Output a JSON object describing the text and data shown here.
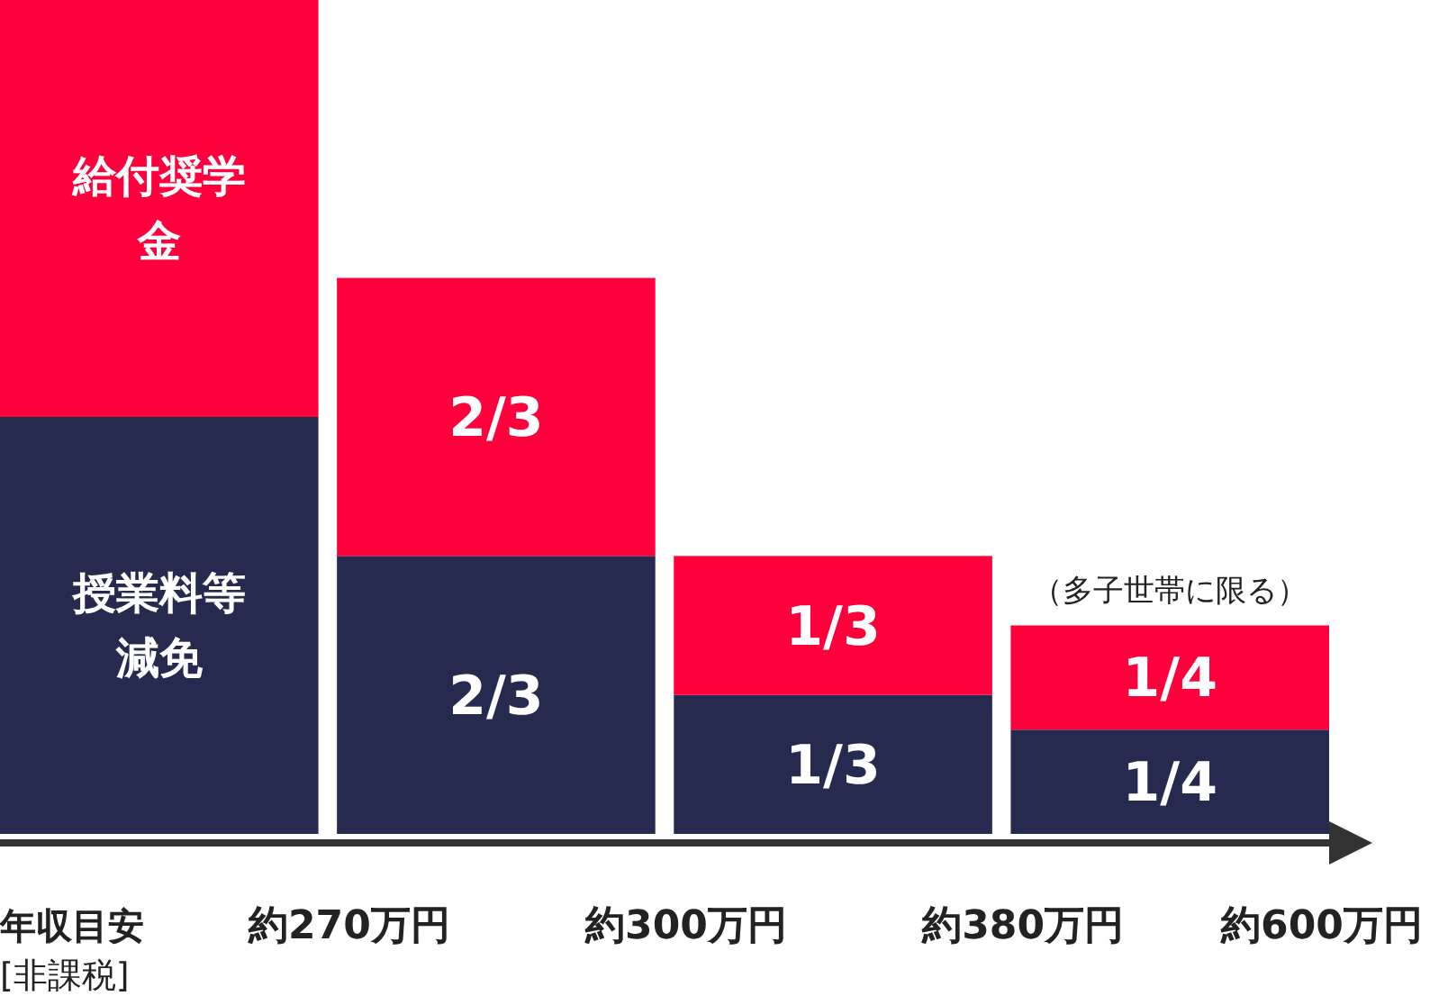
{
  "chart_data": {
    "type": "bar",
    "stacked": true,
    "xlabel": "年収目安",
    "categories": [
      null,
      null,
      null,
      null
    ],
    "series": [
      {
        "name": "授業料等減免",
        "color": "#272a4f",
        "values": [
          1,
          0.6667,
          0.3333,
          0.25
        ],
        "value_labels": [
          null,
          "2/3",
          "1/3",
          "1/4"
        ]
      },
      {
        "name": "給付奨学金",
        "color": "#ff003c",
        "values": [
          1,
          0.6667,
          0.3333,
          0.25
        ],
        "value_labels": [
          null,
          "2/3",
          "1/3",
          "1/4"
        ]
      }
    ],
    "annotations": [
      "（多子世帯に限る）",
      "[非課税]",
      "約270万円",
      "約300万円",
      "約380万円",
      "約600万円"
    ]
  }
}
